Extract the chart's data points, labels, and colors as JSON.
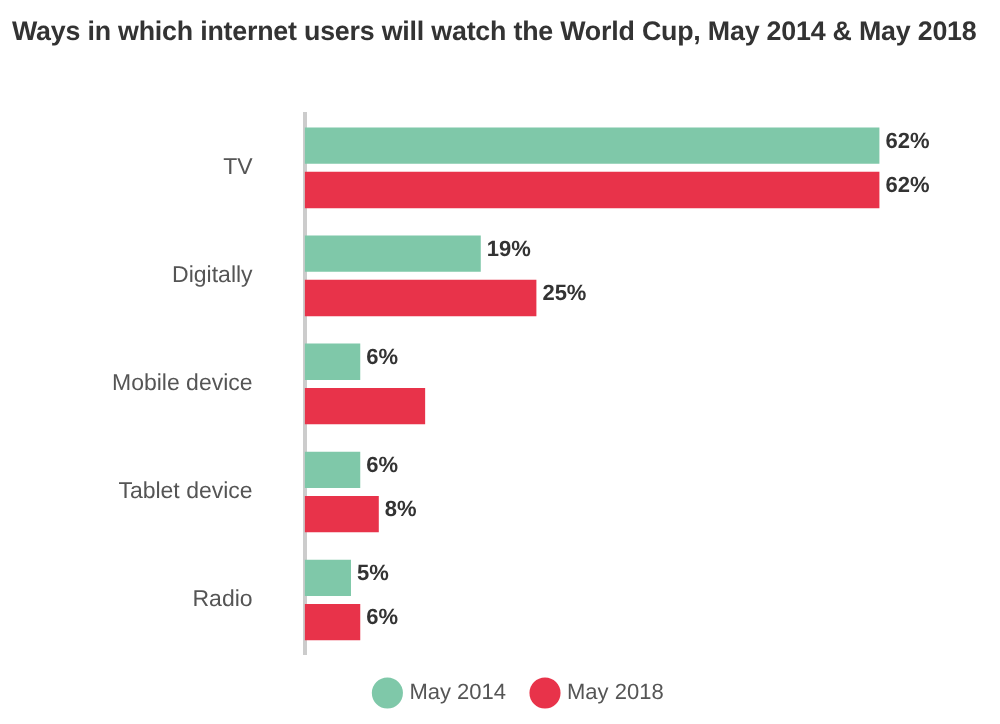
{
  "chart_data": {
    "type": "bar",
    "orientation": "horizontal",
    "title": "Ways in which internet users will watch the World Cup, May 2014 & May 2018",
    "categories": [
      "TV",
      "Digitally",
      "Mobile device",
      "Tablet device",
      "Radio"
    ],
    "series": [
      {
        "name": "May 2014",
        "color": "#7fc8a9",
        "values": [
          62,
          19,
          6,
          6,
          5
        ],
        "value_labels": [
          "62%",
          "19%",
          "6%",
          "6%",
          "5%"
        ]
      },
      {
        "name": "May 2018",
        "color": "#e8334a",
        "values": [
          62,
          25,
          13,
          8,
          6
        ],
        "value_labels": [
          "62%",
          "25%",
          null,
          "8%",
          "6%"
        ]
      }
    ],
    "legend": "bottom"
  }
}
